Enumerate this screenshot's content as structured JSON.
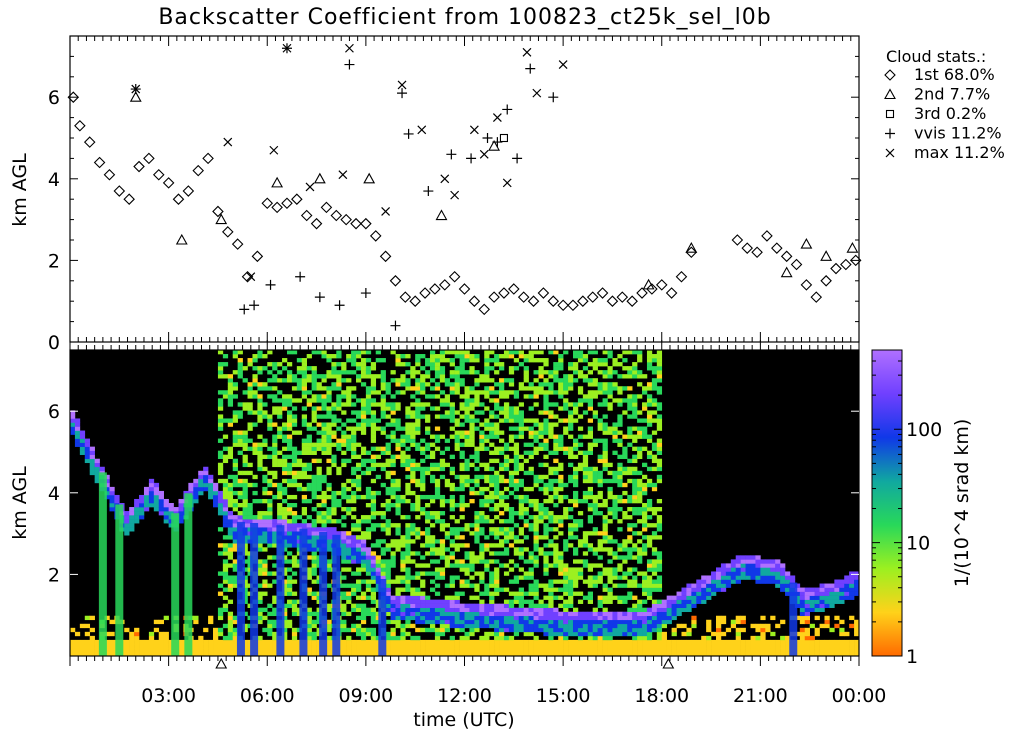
{
  "title": "Backscatter Coefficient from 100823_ct25k_sel_l0b",
  "legend": {
    "heading": "Cloud stats.:",
    "placement": "top-right",
    "entries": [
      {
        "marker": "diamond",
        "label": "1st 68.0%"
      },
      {
        "marker": "triangle",
        "label": "2nd  7.7%"
      },
      {
        "marker": "square",
        "label": "3rd  0.2%"
      },
      {
        "marker": "plus",
        "label": "vvis 11.2%"
      },
      {
        "marker": "cross",
        "label": "max 11.2%"
      }
    ]
  },
  "colorbar": {
    "label": "1/(10^4 srad km)",
    "ticks": [
      "1",
      "10",
      "100"
    ],
    "tick_values": [
      1,
      10,
      100
    ],
    "range": [
      1,
      500
    ],
    "scale": "log",
    "colors": [
      "#ff6a00",
      "#ffd21a",
      "#9cf020",
      "#28d85a",
      "#10a8a0",
      "#1038e8",
      "#7040ff",
      "#b070ff"
    ]
  },
  "chart_data": [
    {
      "type": "scatter",
      "panel": "cloud base heights",
      "ylabel": "km AGL",
      "xlim": [
        0,
        24
      ],
      "ylim": [
        0,
        7.5
      ],
      "y_ticks": [
        0,
        2,
        4,
        6
      ],
      "grid": false,
      "series": [
        {
          "name": "1st",
          "marker": "diamond",
          "x": [
            0.1,
            0.3,
            0.6,
            0.9,
            1.2,
            1.5,
            1.8,
            2.1,
            2.4,
            2.7,
            3.0,
            3.3,
            3.6,
            3.9,
            4.2,
            4.5,
            4.8,
            5.1,
            5.4,
            5.7,
            6.0,
            6.3,
            6.6,
            6.9,
            7.2,
            7.5,
            7.8,
            8.1,
            8.4,
            8.7,
            9.0,
            9.3,
            9.6,
            9.9,
            10.2,
            10.5,
            10.8,
            11.1,
            11.4,
            11.7,
            12.0,
            12.3,
            12.6,
            12.9,
            13.2,
            13.5,
            13.8,
            14.1,
            14.4,
            14.7,
            15.0,
            15.3,
            15.6,
            15.9,
            16.2,
            16.5,
            16.8,
            17.1,
            17.4,
            17.7,
            18.0,
            18.3,
            18.6,
            18.9,
            20.3,
            20.6,
            20.9,
            21.2,
            21.5,
            21.8,
            22.1,
            22.4,
            22.7,
            23.0,
            23.3,
            23.6,
            23.9
          ],
          "y": [
            6.0,
            5.3,
            4.9,
            4.4,
            4.1,
            3.7,
            3.5,
            4.3,
            4.5,
            4.1,
            3.9,
            3.5,
            3.7,
            4.2,
            4.5,
            3.2,
            2.7,
            2.4,
            1.6,
            2.1,
            3.4,
            3.3,
            3.4,
            3.5,
            3.1,
            2.9,
            3.3,
            3.1,
            3.0,
            2.9,
            2.9,
            2.6,
            2.1,
            1.5,
            1.1,
            1.0,
            1.2,
            1.3,
            1.4,
            1.6,
            1.3,
            1.0,
            0.8,
            1.1,
            1.2,
            1.3,
            1.1,
            1.0,
            1.2,
            1.0,
            0.9,
            0.9,
            1.0,
            1.1,
            1.2,
            1.0,
            1.1,
            1.0,
            1.2,
            1.3,
            1.4,
            1.2,
            1.6,
            2.2,
            2.5,
            2.3,
            2.2,
            2.6,
            2.3,
            2.1,
            1.9,
            1.4,
            1.1,
            1.5,
            1.8,
            1.9,
            2.0
          ]
        },
        {
          "name": "2nd",
          "marker": "triangle",
          "x": [
            2.0,
            3.4,
            4.6,
            6.3,
            7.6,
            9.1,
            11.3,
            12.9,
            17.6,
            18.9,
            21.8,
            22.4,
            23.0,
            23.8
          ],
          "y": [
            6.0,
            2.5,
            3.0,
            3.9,
            4.0,
            4.0,
            3.1,
            4.8,
            1.4,
            2.3,
            1.7,
            2.4,
            2.1,
            2.3
          ]
        },
        {
          "name": "3rd",
          "marker": "square",
          "x": [
            13.2
          ],
          "y": [
            5.0
          ]
        },
        {
          "name": "vvis",
          "marker": "plus",
          "x": [
            2.0,
            5.3,
            5.6,
            6.1,
            6.6,
            7.0,
            7.6,
            8.2,
            8.5,
            9.0,
            9.9,
            10.1,
            10.3,
            10.9,
            11.6,
            12.2,
            12.7,
            13.0,
            13.3,
            13.6,
            14.0,
            14.7
          ],
          "y": [
            6.2,
            0.8,
            0.9,
            1.4,
            7.2,
            1.6,
            1.1,
            0.9,
            6.8,
            1.2,
            0.4,
            6.1,
            5.1,
            3.7,
            4.6,
            4.5,
            5.0,
            4.9,
            5.7,
            4.5,
            6.7,
            6.0
          ]
        },
        {
          "name": "max",
          "marker": "cross",
          "x": [
            2.0,
            4.8,
            5.5,
            6.2,
            6.6,
            7.3,
            8.3,
            8.5,
            9.6,
            10.1,
            10.7,
            11.4,
            11.7,
            12.3,
            12.6,
            13.0,
            13.3,
            13.9,
            14.2,
            15.0
          ],
          "y": [
            6.2,
            4.9,
            1.6,
            4.7,
            7.2,
            3.8,
            4.1,
            7.2,
            3.2,
            6.3,
            5.2,
            4.0,
            3.6,
            5.2,
            4.6,
            5.5,
            3.9,
            7.1,
            6.1,
            6.8
          ]
        }
      ]
    },
    {
      "type": "heatmap",
      "panel": "backscatter",
      "xlabel": "time (UTC)",
      "ylabel": "km AGL",
      "xlim": [
        0,
        24
      ],
      "ylim": [
        0,
        7.5
      ],
      "x_tick_values": [
        3,
        6,
        9,
        12,
        15,
        18,
        21,
        24
      ],
      "x_tick_labels": [
        "03:00",
        "06:00",
        "09:00",
        "12:00",
        "15:00",
        "18:00",
        "21:00",
        "00:00"
      ],
      "y_ticks": [
        2,
        4,
        6
      ],
      "noise_band_hours": [
        4.5,
        18.0
      ],
      "cloud_layer_km": [
        {
          "t": 0,
          "z": 6.0
        },
        {
          "t": 1,
          "z": 4.5
        },
        {
          "t": 1.7,
          "z": 3.4
        },
        {
          "t": 2.5,
          "z": 4.2
        },
        {
          "t": 3.2,
          "z": 3.5
        },
        {
          "t": 4.1,
          "z": 4.6
        },
        {
          "t": 5,
          "z": 3.3
        },
        {
          "t": 6.5,
          "z": 3.2
        },
        {
          "t": 8,
          "z": 3.0
        },
        {
          "t": 9,
          "z": 2.7
        },
        {
          "t": 9.8,
          "z": 1.4
        },
        {
          "t": 12,
          "z": 1.2
        },
        {
          "t": 15,
          "z": 1.0
        },
        {
          "t": 17.5,
          "z": 1.0
        },
        {
          "t": 20.5,
          "z": 2.4
        },
        {
          "t": 21.6,
          "z": 2.2
        },
        {
          "t": 22.3,
          "z": 1.5
        },
        {
          "t": 23.2,
          "z": 1.7
        },
        {
          "t": 24,
          "z": 2.0
        }
      ],
      "precip_columns_hours": [
        1.0,
        1.5,
        3.2,
        3.6,
        5.2,
        5.6,
        6.4,
        7.1,
        7.7,
        8.1,
        9.5,
        22.0
      ],
      "triangle_markers_hours": [
        4.6,
        18.2
      ]
    }
  ]
}
